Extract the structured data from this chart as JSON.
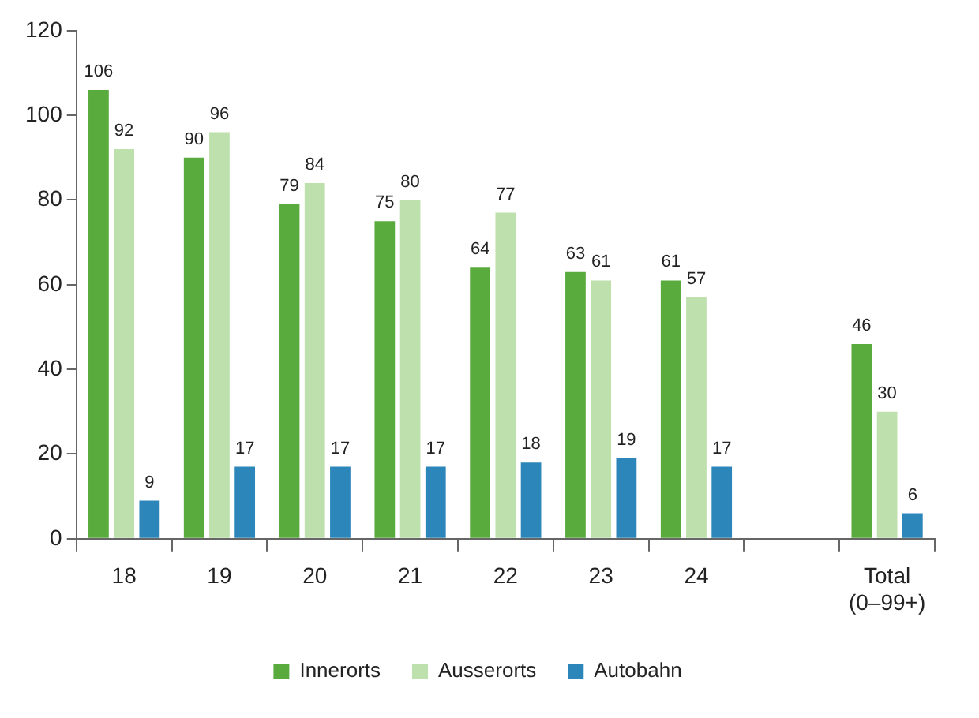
{
  "chart_data": {
    "type": "bar",
    "categories": [
      "18",
      "19",
      "20",
      "21",
      "22",
      "23",
      "24",
      null,
      "Total\n(0–99+)"
    ],
    "series": [
      {
        "name": "Innerorts",
        "color": "#5aab3e",
        "values": [
          106,
          90,
          79,
          75,
          64,
          63,
          61,
          null,
          46
        ]
      },
      {
        "name": "Ausserorts",
        "color": "#bde0ad",
        "values": [
          92,
          96,
          84,
          80,
          77,
          61,
          57,
          null,
          30
        ]
      },
      {
        "name": "Autobahn",
        "color": "#2c86b9",
        "values": [
          9,
          17,
          17,
          17,
          18,
          19,
          17,
          null,
          6
        ]
      }
    ],
    "ylim": [
      0,
      120
    ],
    "yticks": [
      0,
      20,
      40,
      60,
      80,
      100,
      120
    ],
    "grid": false,
    "legend": "bottom",
    "data_labels": true
  }
}
